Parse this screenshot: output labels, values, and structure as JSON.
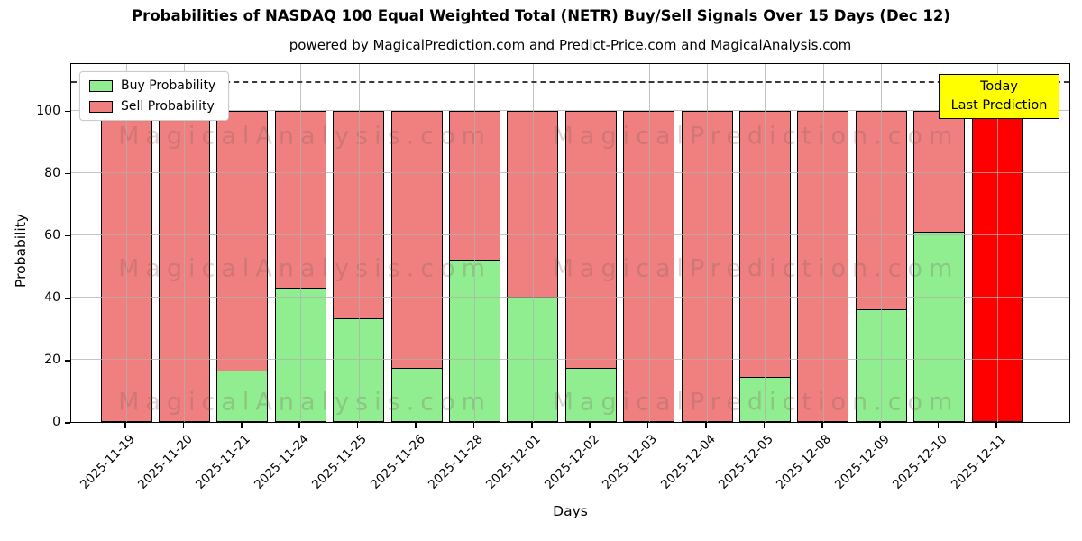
{
  "title": "Probabilities of NASDAQ 100 Equal Weighted Total (NETR) Buy/Sell Signals Over 15 Days (Dec 12)",
  "subtitle": "powered by MagicalPrediction.com and Predict-Price.com and MagicalAnalysis.com",
  "chart_data": {
    "type": "bar",
    "stacked": true,
    "xlabel": "Days",
    "ylabel": "Probability",
    "ylim": [
      0,
      115.5
    ],
    "yticks": [
      0,
      20,
      40,
      60,
      80,
      100
    ],
    "grid": true,
    "threshold_line": {
      "y": 110,
      "style": "dashed",
      "color": "#3a3a3a"
    },
    "categories": [
      "2025-11-19",
      "2025-11-20",
      "2025-11-21",
      "2025-11-24",
      "2025-11-25",
      "2025-11-26",
      "2025-11-28",
      "2025-12-01",
      "2025-12-02",
      "2025-12-03",
      "2025-12-04",
      "2025-12-05",
      "2025-12-08",
      "2025-12-09",
      "2025-12-10",
      "2025-12-11"
    ],
    "series": [
      {
        "name": "Buy Probability",
        "color": "#90ee90",
        "values": [
          0,
          0,
          16,
          43,
          33,
          17,
          52,
          40,
          17,
          0,
          0,
          14,
          0,
          36,
          61,
          0
        ]
      },
      {
        "name": "Sell Probability",
        "color": "#f08080",
        "values": [
          100,
          100,
          84,
          57,
          67,
          83,
          48,
          60,
          83,
          100,
          100,
          86,
          100,
          64,
          39,
          100
        ]
      }
    ],
    "highlight_last_bar": {
      "index": 15,
      "color": "#ff0000",
      "label": "Last Prediction"
    },
    "legend": {
      "position": "upper-left",
      "entries": [
        {
          "label": "Buy Probability",
          "color": "#90ee90"
        },
        {
          "label": "Sell Probability",
          "color": "#f08080"
        }
      ]
    },
    "annotation": {
      "lines": [
        "Today",
        "Last Prediction"
      ],
      "bg": "#ffff00"
    }
  },
  "watermarks": {
    "left_text": "MagicalAnalysis.com",
    "right_text": "MagicalPrediction.com"
  },
  "colors": {
    "buy": "#90ee90",
    "sell": "#f08080",
    "last_prediction": "#ff0000",
    "annotation_bg": "#ffff00",
    "grid": "#b0b0b0"
  }
}
